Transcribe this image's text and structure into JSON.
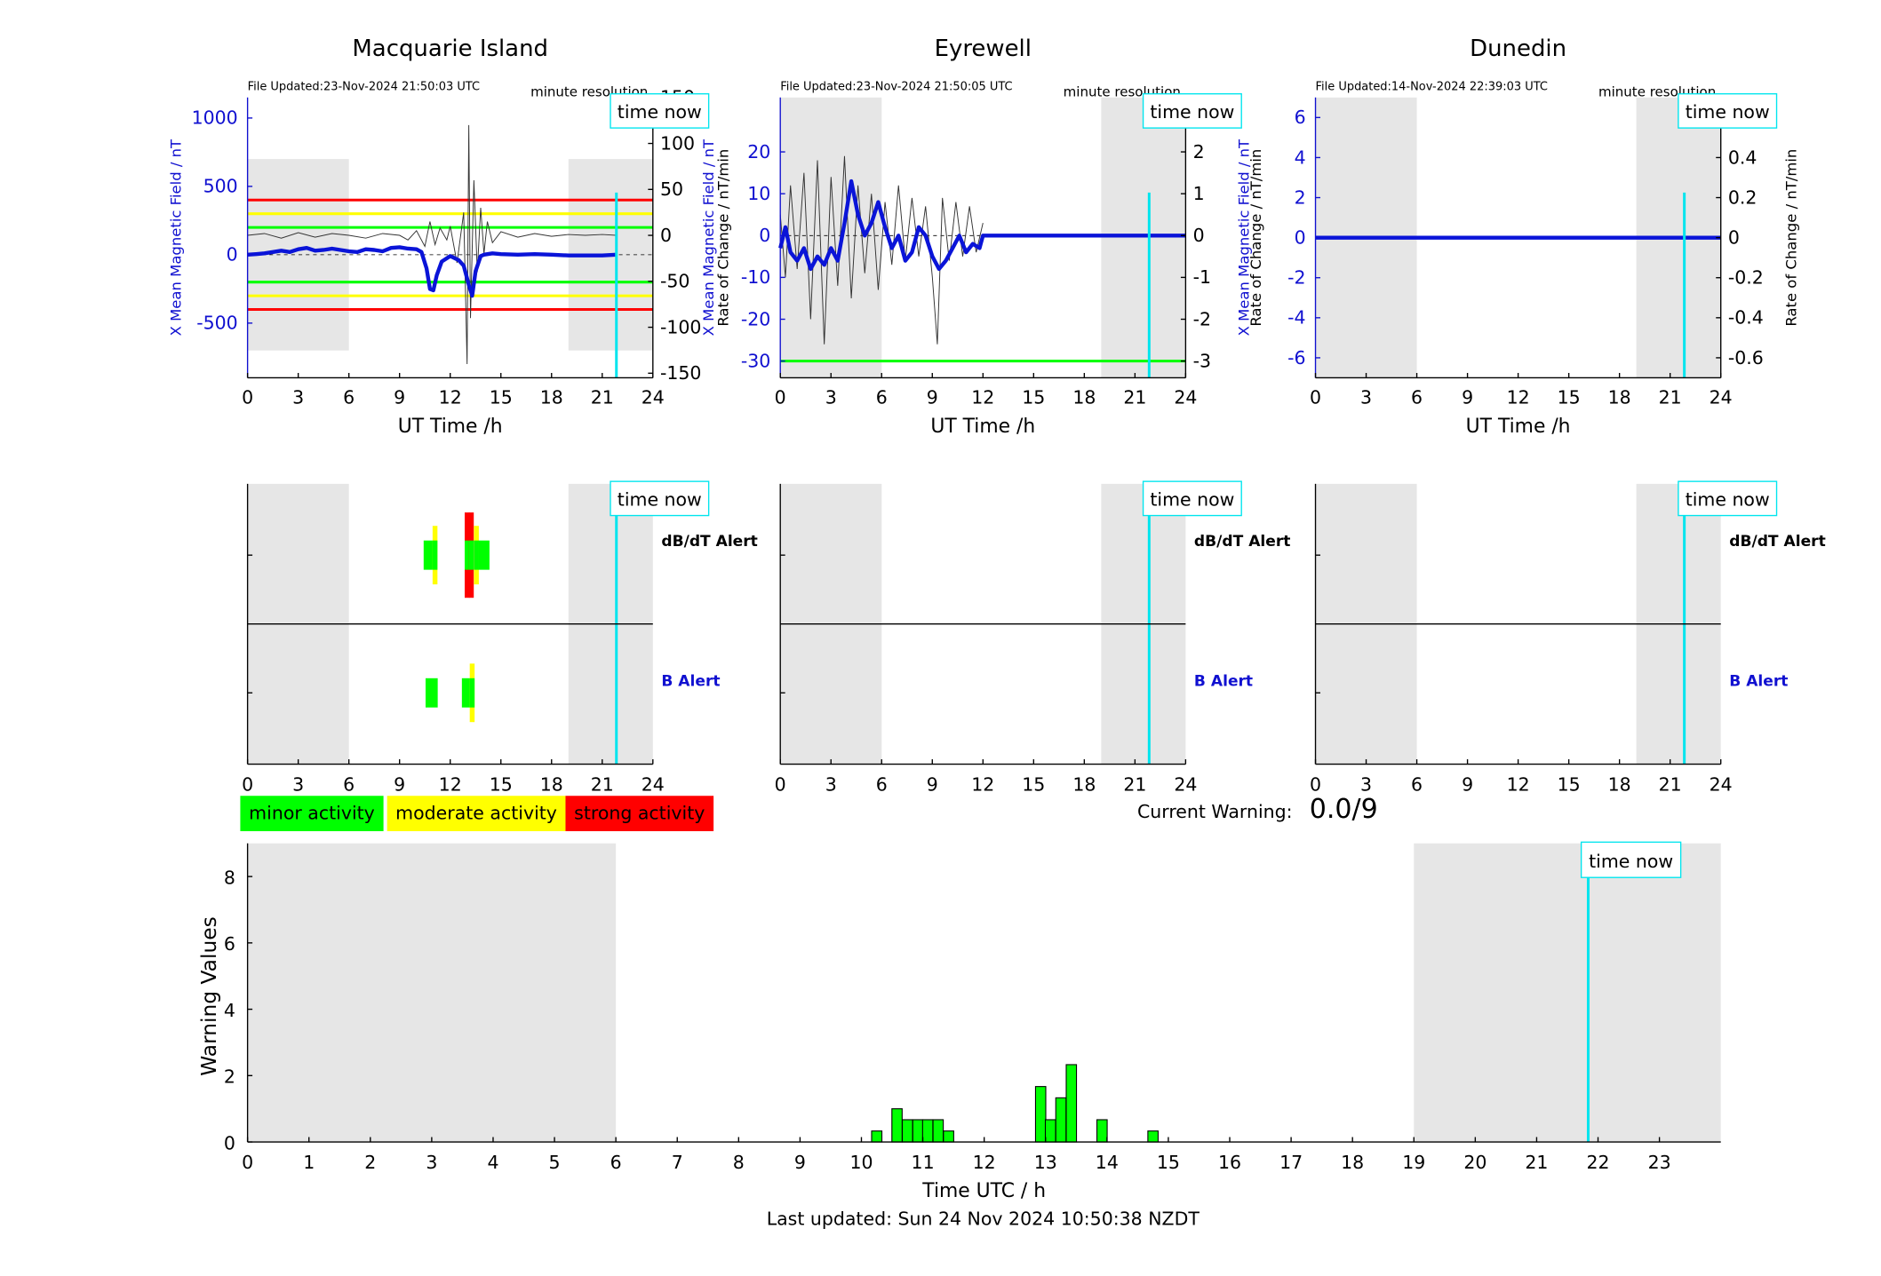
{
  "colors": {
    "shade": "#e6e6e6",
    "now_line": "#00e5ee",
    "field_line": "#0a14d8",
    "rate_line": "#333333",
    "minor": "#00ff00",
    "moderate": "#ffff00",
    "strong": "#ff0000",
    "axis": "#000000",
    "left_axis_color": "#1010d0"
  },
  "legend": [
    {
      "label": "minor activity",
      "color": "#00ff00"
    },
    {
      "label": "moderate activity",
      "color": "#ffff00"
    },
    {
      "label": "strong activity",
      "color": "#ff0000"
    }
  ],
  "alert_labels": {
    "dbdt": "dB/dT Alert",
    "b": "B Alert"
  },
  "time_now_label": "time now",
  "current_warning": {
    "label": "Current Warning:",
    "value": "0.0/9"
  },
  "last_updated": "Last updated: Sun 24 Nov 2024 10:50:38 NZDT",
  "chart_data": [
    {
      "type": "line",
      "title": "Macquarie Island",
      "file_updated": "File Updated:23-Nov-2024 21:50:03 UTC",
      "resolution": "minute resolution",
      "xlabel": "UT Time /h",
      "ylabel": "X Mean Magnetic Field / nT",
      "y2label": "Rate of Change / nT/min",
      "xlim": [
        0,
        24
      ],
      "xticks": [
        0,
        3,
        6,
        9,
        12,
        15,
        18,
        21,
        24
      ],
      "ylim": [
        -900,
        1150
      ],
      "yticks": [
        -500,
        0,
        500,
        1000
      ],
      "y2lim": [
        -155,
        150
      ],
      "y2ticks": [
        -150,
        -100,
        -50,
        0,
        50,
        100,
        150
      ],
      "shaded": [
        [
          0,
          6,
          -700,
          700
        ],
        [
          19,
          24,
          -700,
          700
        ]
      ],
      "time_now": 21.84,
      "thresholds": [
        {
          "y": 400,
          "color": "#ff0000"
        },
        {
          "y": 300,
          "color": "#ffff00"
        },
        {
          "y": 200,
          "color": "#00ff00"
        },
        {
          "y": -200,
          "color": "#00ff00"
        },
        {
          "y": -300,
          "color": "#ffff00"
        },
        {
          "y": -400,
          "color": "#ff0000"
        }
      ],
      "field": {
        "x": [
          0,
          0.5,
          1,
          1.5,
          2,
          2.5,
          3,
          3.5,
          4,
          4.5,
          5,
          5.5,
          6,
          6.5,
          7,
          7.5,
          8,
          8.5,
          9,
          9.5,
          10,
          10.3,
          10.6,
          10.8,
          11,
          11.2,
          11.5,
          12,
          12.5,
          12.8,
          13.1,
          13.3,
          13.5,
          13.8,
          14,
          14.5,
          15,
          16,
          17,
          18,
          19,
          20,
          21,
          21.84
        ],
        "y": [
          0,
          5,
          10,
          20,
          30,
          20,
          40,
          50,
          30,
          35,
          45,
          35,
          25,
          20,
          40,
          35,
          25,
          50,
          55,
          45,
          40,
          20,
          -100,
          -250,
          -260,
          -150,
          -50,
          -10,
          -40,
          -80,
          -220,
          -300,
          -120,
          -10,
          0,
          10,
          5,
          0,
          5,
          0,
          -5,
          -5,
          -5,
          0
        ]
      },
      "dbdt": {
        "x": [
          0,
          1,
          2,
          3,
          4,
          5,
          6,
          7,
          8,
          9,
          9.5,
          10,
          10.5,
          10.8,
          11.1,
          11.4,
          11.8,
          12,
          12.4,
          12.8,
          13,
          13.1,
          13.2,
          13.4,
          13.6,
          13.8,
          14,
          14.2,
          14.5,
          15,
          16,
          17,
          18,
          19,
          20,
          21,
          21.84
        ],
        "y": [
          0,
          2,
          -3,
          3,
          -2,
          2,
          0,
          -3,
          2,
          0,
          -5,
          5,
          -12,
          15,
          -10,
          8,
          -5,
          10,
          -30,
          25,
          -140,
          120,
          -90,
          60,
          -40,
          30,
          -20,
          15,
          -8,
          4,
          -2,
          2,
          -1,
          1,
          0,
          1,
          0
        ]
      }
    },
    {
      "type": "line",
      "title": "Eyrewell",
      "file_updated": "File Updated:23-Nov-2024 21:50:05 UTC",
      "resolution": "minute resolution",
      "xlabel": "UT Time /h",
      "ylabel": "X Mean Magnetic Field / nT",
      "y2label": "Rate of Change / nT/min",
      "xlim": [
        0,
        24
      ],
      "xticks": [
        0,
        3,
        6,
        9,
        12,
        15,
        18,
        21,
        24
      ],
      "ylim": [
        -34,
        33
      ],
      "yticks": [
        -30,
        -20,
        -10,
        0,
        10,
        20
      ],
      "y2lim": [
        -3.4,
        3.3
      ],
      "y2ticks": [
        -3,
        -2,
        -1,
        0,
        1,
        2
      ],
      "shaded": [
        [
          0,
          6,
          -34,
          33
        ],
        [
          19,
          24,
          -34,
          33
        ]
      ],
      "time_now": 21.84,
      "thresholds": [
        {
          "y": -30,
          "color": "#00ff00"
        }
      ],
      "field": {
        "x": [
          0,
          0.3,
          0.6,
          1,
          1.4,
          1.8,
          2.2,
          2.6,
          3,
          3.4,
          3.8,
          4.2,
          4.6,
          5,
          5.4,
          5.8,
          6.2,
          6.6,
          7,
          7.4,
          7.8,
          8.2,
          8.6,
          9,
          9.4,
          9.8,
          10.2,
          10.6,
          11,
          11.4,
          11.8,
          12,
          13,
          15,
          18,
          21,
          24
        ],
        "y": [
          -3,
          2,
          -4,
          -6,
          -3,
          -8,
          -5,
          -7,
          -3,
          -6,
          3,
          13,
          5,
          0,
          3,
          8,
          2,
          -3,
          0,
          -6,
          -4,
          2,
          0,
          -5,
          -8,
          -6,
          -3,
          0,
          -4,
          -2,
          -3,
          0,
          0,
          0,
          0,
          0,
          0
        ]
      },
      "dbdt": {
        "x": [
          0,
          0.3,
          0.6,
          1,
          1.4,
          1.8,
          2.2,
          2.6,
          3,
          3.4,
          3.8,
          4.2,
          4.6,
          5,
          5.4,
          5.8,
          6.2,
          6.6,
          7,
          7.4,
          7.8,
          8.2,
          8.6,
          9,
          9.3,
          9.6,
          10,
          10.4,
          10.8,
          11.2,
          11.6,
          12
        ],
        "y": [
          0.5,
          -1,
          1.2,
          -0.8,
          1.5,
          -2,
          1.8,
          -2.6,
          1.4,
          -1.2,
          1.9,
          -1.5,
          1.2,
          -0.9,
          1.0,
          -1.3,
          0.8,
          -0.7,
          1.2,
          -0.6,
          0.9,
          -0.5,
          0.7,
          -1.0,
          -2.6,
          0.9,
          -0.6,
          0.8,
          -0.5,
          0.7,
          -0.4,
          0.3
        ]
      }
    },
    {
      "type": "line",
      "title": "Dunedin",
      "file_updated": "File Updated:14-Nov-2024 22:39:03 UTC",
      "resolution": "minute resolution",
      "xlabel": "UT Time /h",
      "ylabel": "X Mean Magnetic Field / nT",
      "y2label": "Rate of Change / nT/min",
      "xlim": [
        0,
        24
      ],
      "xticks": [
        0,
        3,
        6,
        9,
        12,
        15,
        18,
        21,
        24
      ],
      "ylim": [
        -7,
        7
      ],
      "yticks": [
        -6,
        -4,
        -2,
        0,
        2,
        4,
        6
      ],
      "y2lim": [
        -0.7,
        0.7
      ],
      "y2ticks": [
        -0.6,
        -0.4,
        -0.2,
        0,
        0.2,
        0.4,
        0.6
      ],
      "shaded": [
        [
          0,
          6,
          -7,
          7
        ],
        [
          19,
          24,
          -7,
          7
        ]
      ],
      "time_now": 21.84,
      "thresholds": [],
      "field": {
        "x": [
          0,
          24
        ],
        "y": [
          0,
          0
        ]
      },
      "dbdt": {
        "x": [],
        "y": []
      }
    },
    {
      "type": "bar",
      "title": "",
      "xlabel": "Time UTC / h",
      "ylabel": "Warning Values",
      "xlim": [
        0,
        24
      ],
      "xticks": [
        0,
        1,
        2,
        3,
        4,
        5,
        6,
        7,
        8,
        9,
        10,
        11,
        12,
        13,
        14,
        15,
        16,
        17,
        18,
        19,
        20,
        21,
        22,
        23
      ],
      "ylim": [
        0,
        9
      ],
      "yticks": [
        0,
        2,
        4,
        6,
        8
      ],
      "shaded": [
        [
          0,
          6
        ],
        [
          19,
          24
        ]
      ],
      "time_now": 21.84,
      "bar_width": 0.167,
      "bars": {
        "x": [
          10.25,
          10.58,
          10.75,
          10.92,
          11.08,
          11.25,
          11.42,
          12.92,
          13.08,
          13.25,
          13.42,
          13.92,
          14.75
        ],
        "y": [
          0.33,
          1.0,
          0.67,
          0.67,
          0.67,
          0.67,
          0.33,
          1.67,
          0.67,
          1.33,
          2.33,
          0.67,
          0.33
        ]
      }
    }
  ],
  "alert_data": [
    {
      "station": "Macquarie Island",
      "dbdt": [
        {
          "x": 10.75,
          "level": "minor"
        },
        {
          "x": 11.1,
          "level": "moderate"
        },
        {
          "x": 13.0,
          "level": "strong"
        },
        {
          "x": 13.25,
          "level": "strong"
        },
        {
          "x": 13.55,
          "level": "moderate"
        },
        {
          "x": 14.0,
          "level": "minor"
        }
      ],
      "b": [
        {
          "x": 10.9,
          "level": "minor"
        },
        {
          "x": 13.05,
          "level": "minor"
        },
        {
          "x": 13.3,
          "level": "moderate"
        }
      ]
    },
    {
      "station": "Eyrewell",
      "dbdt": [],
      "b": []
    },
    {
      "station": "Dunedin",
      "dbdt": [],
      "b": []
    }
  ]
}
